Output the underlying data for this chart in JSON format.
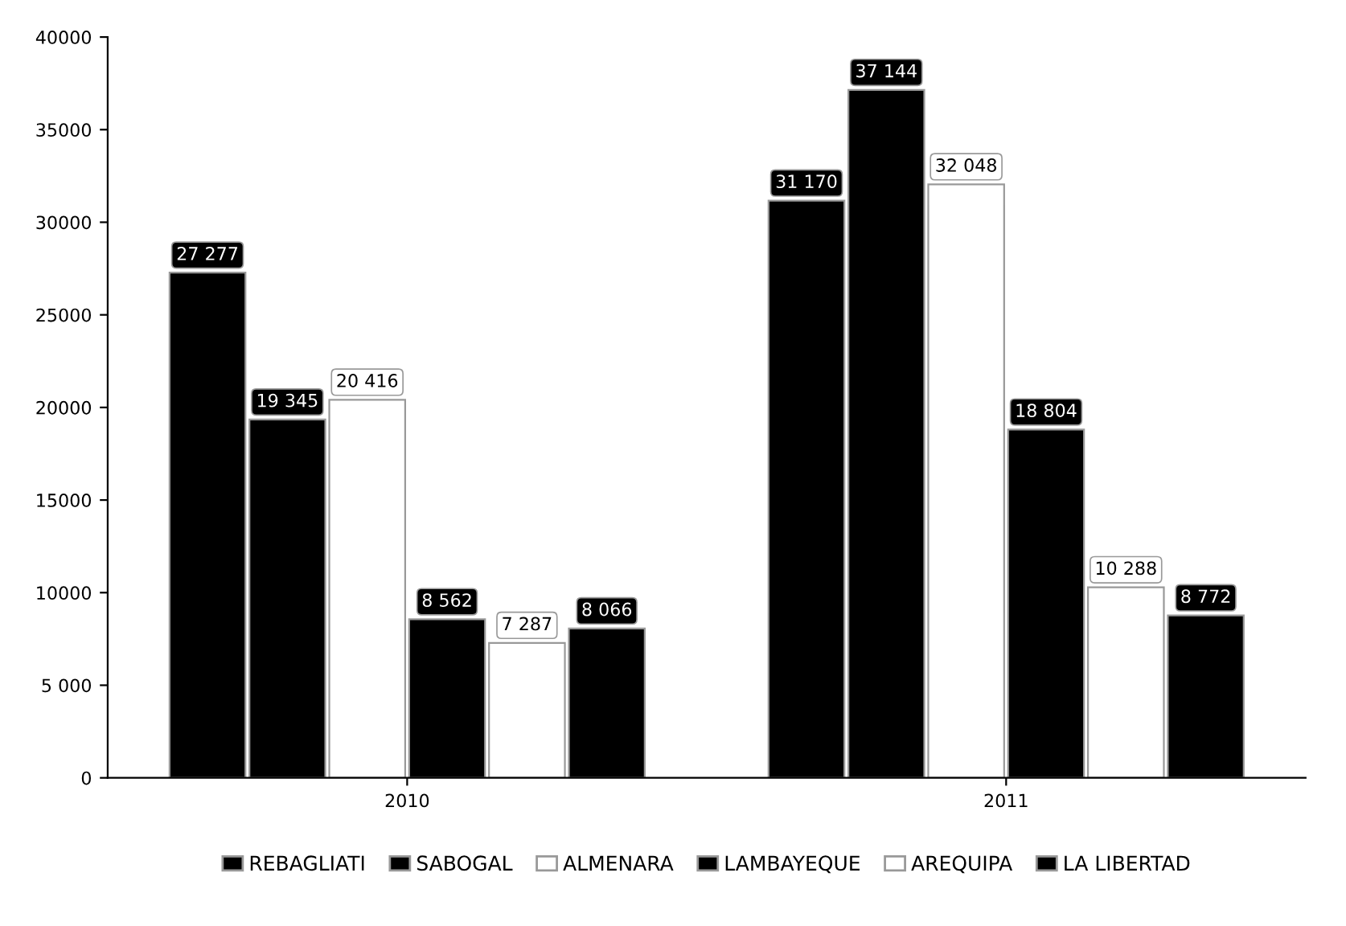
{
  "chart_data": {
    "type": "bar",
    "categories": [
      "2010",
      "2011"
    ],
    "series": [
      {
        "name": "REBAGLIATI",
        "color": "#000000",
        "values": [
          27277,
          31170
        ],
        "value_labels": [
          "27 277",
          "31 170"
        ]
      },
      {
        "name": "SABOGAL",
        "color": "#000000",
        "values": [
          19345,
          37144
        ],
        "value_labels": [
          "19 345",
          "37 144"
        ]
      },
      {
        "name": "ALMENARA",
        "color": "#ffffff",
        "values": [
          20416,
          32048
        ],
        "value_labels": [
          "20 416",
          "32 048"
        ]
      },
      {
        "name": "LAMBAYEQUE",
        "color": "#000000",
        "values": [
          8562,
          18804
        ],
        "value_labels": [
          "8 562",
          "18 804"
        ]
      },
      {
        "name": "AREQUIPA",
        "color": "#ffffff",
        "values": [
          7287,
          10288
        ],
        "value_labels": [
          "7 287",
          "10 288"
        ]
      },
      {
        "name": "LA LIBERTAD",
        "color": "#000000",
        "values": [
          8066,
          8772
        ],
        "value_labels": [
          "8 066",
          "8 772"
        ]
      }
    ],
    "ylim": [
      0,
      40000
    ],
    "yticks": [
      0,
      {
        "value": 5000,
        "label": "5 000"
      },
      10000,
      15000,
      20000,
      25000,
      30000,
      35000,
      40000
    ],
    "legend": "bottom",
    "grid": false
  }
}
